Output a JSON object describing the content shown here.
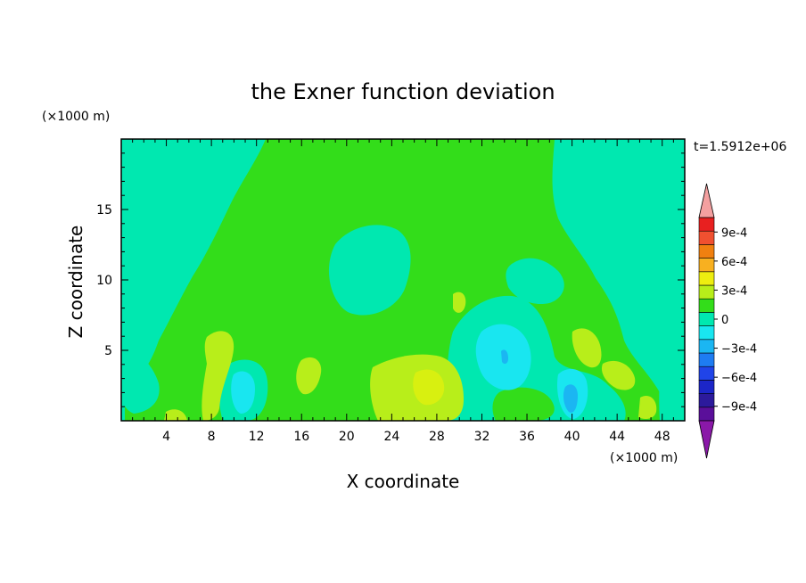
{
  "chart_data": {
    "type": "heatmap",
    "title": "the Exner function deviation",
    "xlabel": "X coordinate",
    "ylabel": "Z coordinate",
    "x_unit": "(×1000 m)",
    "y_unit": "(×1000 m)",
    "time_label": "t=1.5912e+06",
    "xlim": [
      0,
      50
    ],
    "ylim": [
      0,
      20
    ],
    "x_ticks": [
      4,
      8,
      12,
      16,
      20,
      24,
      28,
      32,
      36,
      40,
      44,
      48
    ],
    "x_tick_labels": [
      "4",
      "8",
      "12",
      "16",
      "20",
      "24",
      "28",
      "32",
      "36",
      "40",
      "44",
      "48"
    ],
    "y_ticks": [
      5,
      10,
      15
    ],
    "y_tick_labels": [
      "5",
      "10",
      "15"
    ],
    "colorbar": {
      "levels": [
        -0.00105,
        -0.0009,
        -0.00075,
        -0.0006,
        -0.00045,
        -0.0003,
        -0.00015,
        0,
        0.00015,
        0.0003,
        0.00045,
        0.0006,
        0.00075,
        0.0009,
        0.00105
      ],
      "colors": [
        "#5a0f9a",
        "#2c1a9c",
        "#1c26c8",
        "#2044e8",
        "#1e7cf2",
        "#1bb6f2",
        "#19e6f0",
        "#00e8b0",
        "#33dd1a",
        "#b8ee1a",
        "#eeee10",
        "#f8b020",
        "#f08010",
        "#f05030",
        "#e82020",
        "#f4a0a0"
      ],
      "underflow_color": "#8a18a8",
      "overflow_color": "#f4a0a0",
      "tick_values": [
        0.0009,
        0.0006,
        0.0003,
        0,
        -0.0003,
        -0.0006,
        -0.0009
      ],
      "tick_labels": [
        "9e-4",
        "6e-4",
        "3e-4",
        "0",
        "−3e-4",
        "−6e-4",
        "−9e-4"
      ]
    },
    "regions": [
      {
        "name": "background-negative",
        "value": -0.0001,
        "color": "#00e8b0"
      },
      {
        "name": "central-positive-band",
        "value": 0.0001,
        "color": "#33dd1a"
      },
      {
        "name": "lower-positive-patches",
        "value": 0.0003,
        "color": "#b8ee1a"
      },
      {
        "name": "lower-strong-positive",
        "value": 0.0004,
        "color": "#d8f010"
      },
      {
        "name": "negative-cells",
        "value": -0.0002,
        "color": "#19e6f0"
      },
      {
        "name": "negative-cores",
        "value": -0.0004,
        "color": "#1bb6f2"
      }
    ]
  }
}
